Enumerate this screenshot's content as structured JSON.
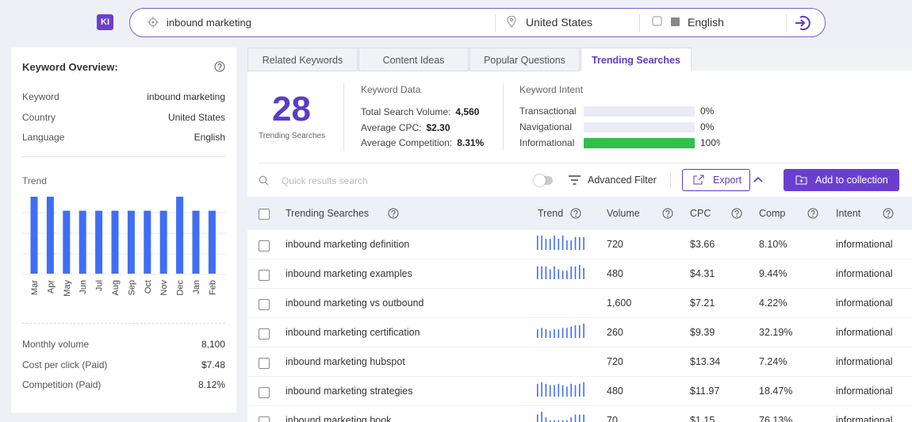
{
  "app": {
    "logo": "KI"
  },
  "search": {
    "query": "inbound marketing",
    "location": "United States",
    "language": "English"
  },
  "overview": {
    "title": "Keyword Overview:",
    "rows": [
      {
        "label": "Keyword",
        "value": "inbound marketing"
      },
      {
        "label": "Country",
        "value": "United States"
      },
      {
        "label": "Language",
        "value": "English"
      }
    ],
    "trend": {
      "label": "Trend",
      "categories": [
        "Mar",
        "Apr",
        "May",
        "Jun",
        "Jul",
        "Aug",
        "Sep",
        "Oct",
        "Nov",
        "Dec",
        "Jan",
        "Feb"
      ],
      "values": [
        9900,
        9900,
        8100,
        8100,
        8100,
        8100,
        8100,
        8100,
        8100,
        9900,
        8100,
        8100
      ],
      "color": "#3f6ef5"
    },
    "metrics": [
      {
        "label": "Monthly volume",
        "value": "8,100"
      },
      {
        "label": "Cost per click (Paid)",
        "value": "$7.48"
      },
      {
        "label": "Competition (Paid)",
        "value": "8.12%"
      }
    ]
  },
  "tabs": [
    "Related Keywords",
    "Content Ideas",
    "Popular Questions",
    "Trending Searches"
  ],
  "active_tab": 3,
  "summary": {
    "count": 28,
    "count_label": "Trending Searches",
    "keyword_data": {
      "title": "Keyword Data",
      "rows": [
        {
          "label": "Total Search Volume:",
          "value": "4,560"
        },
        {
          "label": "Average CPC:",
          "value": "$2.30"
        },
        {
          "label": "Average Competition:",
          "value": "8.31%"
        }
      ]
    },
    "intent": {
      "title": "Keyword Intent",
      "rows": [
        {
          "label": "Transactional",
          "value": 0,
          "value_label": "0%"
        },
        {
          "label": "Navigational",
          "value": 0,
          "value_label": "0%"
        },
        {
          "label": "Informational",
          "value": 100,
          "value_label": "100%"
        }
      ]
    }
  },
  "toolbar": {
    "search_placeholder": "Quick results search",
    "filter": "Advanced Filter",
    "export": "Export",
    "add": "Add to collection"
  },
  "table": {
    "columns": [
      "Trending Searches",
      "Trend",
      "Volume",
      "CPC",
      "Comp",
      "Intent"
    ],
    "rows": [
      {
        "keyword": "inbound marketing definition",
        "trend": [
          9,
          9,
          7,
          7,
          9,
          7,
          9,
          6,
          6,
          8,
          8,
          8
        ],
        "volume": "720",
        "cpc": "$3.66",
        "comp": "8.10%",
        "intent": "informational"
      },
      {
        "keyword": "inbound marketing examples",
        "trend": [
          9,
          9,
          9,
          7,
          9,
          7,
          6,
          6,
          9,
          9,
          10,
          8
        ],
        "volume": "480",
        "cpc": "$4.31",
        "comp": "9.44%",
        "intent": "informational"
      },
      {
        "keyword": "inbound marketing vs outbound",
        "volume": "1,600",
        "cpc": "$7.21",
        "comp": "4.22%",
        "intent": "informational"
      },
      {
        "keyword": "inbound marketing certification",
        "trend": [
          6,
          7,
          6,
          5,
          6,
          6,
          7,
          7,
          8,
          9,
          9,
          10
        ],
        "volume": "260",
        "cpc": "$9.39",
        "comp": "32.19%",
        "intent": "informational"
      },
      {
        "keyword": "inbound marketing hubspot",
        "volume": "720",
        "cpc": "$13.34",
        "comp": "7.24%",
        "intent": "informational"
      },
      {
        "keyword": "inbound marketing strategies",
        "trend": [
          9,
          10,
          9,
          8,
          8,
          9,
          8,
          7,
          9,
          8,
          9,
          10
        ],
        "volume": "480",
        "cpc": "$11.97",
        "comp": "18.47%",
        "intent": "informational"
      },
      {
        "keyword": "inbound marketing book",
        "trend": [
          8,
          10,
          6,
          4,
          4,
          4,
          4,
          4,
          6,
          8,
          8,
          8
        ],
        "volume": "70",
        "cpc": "$1.15",
        "comp": "76.13%",
        "intent": "informational"
      }
    ]
  }
}
